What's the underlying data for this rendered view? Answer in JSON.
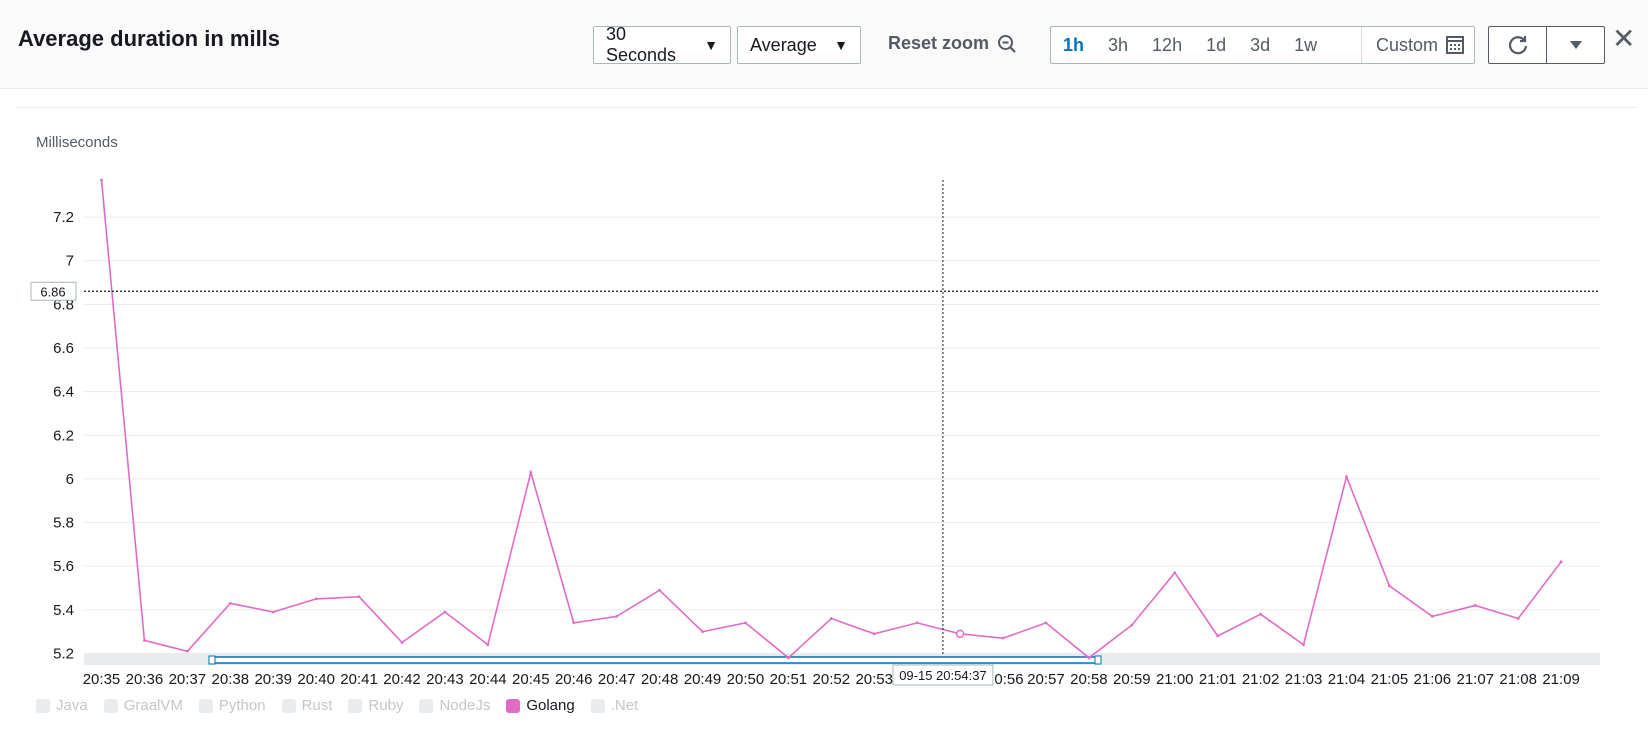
{
  "header": {
    "title": "Average duration in mills",
    "period": "30 Seconds",
    "statistic": "Average",
    "reset_zoom": "Reset zoom",
    "ranges": [
      "1h",
      "3h",
      "12h",
      "1d",
      "3d",
      "1w"
    ],
    "active_range": "1h",
    "custom": "Custom"
  },
  "icons": {
    "zoom_out": "zoom-out-icon",
    "calendar": "calendar-icon",
    "refresh": "refresh-icon",
    "dropdown": "chevron-down-icon",
    "close": "close-icon"
  },
  "colors": {
    "series": "#e06cc5",
    "accent": "#0073bb",
    "inactive": "#e9ebed"
  },
  "crosshair": {
    "y_label": "6.86",
    "y_value": 6.86,
    "x_label": "09-15 20:54:37",
    "x_value": "20:54:37"
  },
  "chart_data": {
    "type": "line",
    "ylabel": "Milliseconds",
    "ylim": [
      5.17,
      7.37
    ],
    "yticks": [
      5.2,
      5.4,
      5.6,
      5.8,
      6,
      6.2,
      6.4,
      6.6,
      6.8,
      7,
      7.2
    ],
    "x": [
      "20:35",
      "20:36",
      "20:37",
      "20:38",
      "20:39",
      "20:40",
      "20:41",
      "20:42",
      "20:43",
      "20:44",
      "20:45",
      "20:46",
      "20:47",
      "20:48",
      "20:49",
      "20:50",
      "20:51",
      "20:52",
      "20:53",
      "20:54",
      "20:55",
      "20:56",
      "20:57",
      "20:58",
      "20:59",
      "21:00",
      "21:01",
      "21:02",
      "21:03",
      "21:04",
      "21:05",
      "21:06",
      "21:07",
      "21:08",
      "21:09"
    ],
    "x_tick_labels": [
      "20:35",
      "20:36",
      "20:37",
      "20:38",
      "20:39",
      "20:40",
      "20:41",
      "20:42",
      "20:43",
      "20:44",
      "20:45",
      "20:46",
      "20:47",
      "20:48",
      "20:49",
      "20:50",
      "20:51",
      "20:52",
      "20:53",
      "",
      "",
      "0:56",
      "20:57",
      "20:58",
      "20:59",
      "21:00",
      "21:01",
      "21:02",
      "21:03",
      "21:04",
      "21:05",
      "21:06",
      "21:07",
      "21:08",
      "21:09"
    ],
    "series": [
      {
        "name": "Golang",
        "values": [
          7.37,
          5.26,
          5.21,
          5.43,
          5.39,
          5.45,
          5.46,
          5.25,
          5.39,
          5.24,
          6.03,
          5.34,
          5.37,
          5.49,
          5.3,
          5.34,
          5.18,
          5.36,
          5.29,
          5.34,
          5.29,
          5.27,
          5.34,
          5.18,
          5.33,
          5.57,
          5.28,
          5.38,
          5.24,
          6.01,
          5.51,
          5.37,
          5.42,
          5.36,
          5.62
        ]
      }
    ],
    "legend": [
      {
        "label": "Java",
        "active": false
      },
      {
        "label": "GraalVM",
        "active": false
      },
      {
        "label": "Python",
        "active": false
      },
      {
        "label": "Rust",
        "active": false
      },
      {
        "label": "Ruby",
        "active": false
      },
      {
        "label": "NodeJs",
        "active": false
      },
      {
        "label": "Golang",
        "active": true
      },
      {
        "label": ".Net",
        "active": false
      }
    ],
    "legend_position": "bottom-left",
    "grid": true
  }
}
